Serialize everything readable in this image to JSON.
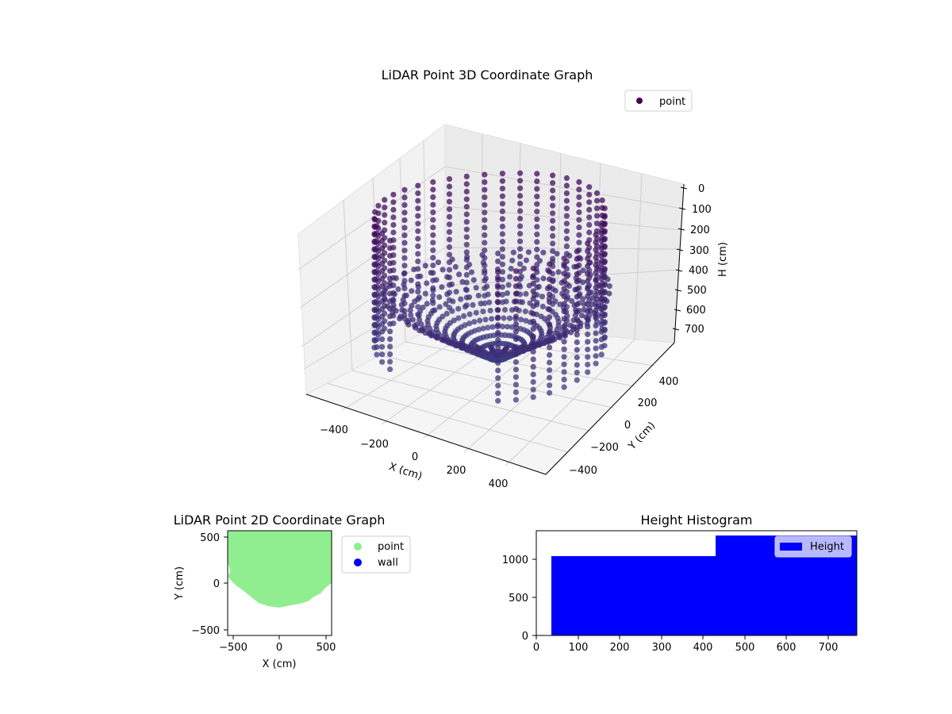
{
  "chart_data": [
    {
      "type": "scatter3d",
      "title": "LiDAR Point 3D Coordinate Graph",
      "xlabel": "X (cm)",
      "ylabel": "Y (cm)",
      "zlabel": "H (cm)",
      "x_ticks": [
        "−400",
        "−200",
        "0",
        "200",
        "400"
      ],
      "y_ticks": [
        "−400",
        "−200",
        "0",
        "200",
        "400"
      ],
      "z_ticks": [
        "0",
        "100",
        "200",
        "300",
        "400",
        "500",
        "600",
        "700"
      ],
      "xlim": [
        -550,
        550
      ],
      "ylim": [
        -550,
        550
      ],
      "zlim": [
        0,
        770
      ],
      "z_inverted": true,
      "legend": [
        {
          "label": "point",
          "color": "#440154"
        }
      ],
      "colormap": "viridis",
      "description": "Bowl-shaped point cloud of a room scan: ring of vertical wall columns around a dense floor cluster near H~700"
    },
    {
      "type": "scatter",
      "title": "LiDAR Point 2D Coordinate Graph",
      "xlabel": "X (cm)",
      "ylabel": "Y (cm)",
      "x_ticks": [
        "−500",
        "0",
        "500"
      ],
      "y_ticks": [
        "−500",
        "0",
        "500"
      ],
      "xlim": [
        -560,
        560
      ],
      "ylim": [
        -560,
        560
      ],
      "legend": [
        {
          "label": "point",
          "color": "#90ee90"
        },
        {
          "label": "wall",
          "color": "#0000ff"
        }
      ],
      "description": "Filled green region spanning x -500..560, y -270..560 with rounded lower boundary"
    },
    {
      "type": "bar",
      "title": "Height Histogram",
      "xlabel": "",
      "ylabel": "",
      "x_ticks": [
        "0",
        "100",
        "200",
        "300",
        "400",
        "500",
        "600",
        "700"
      ],
      "y_ticks": [
        "0",
        "500",
        "1000"
      ],
      "xlim": [
        0,
        770
      ],
      "ylim": [
        0,
        1380
      ],
      "bins": [
        [
          35,
          432
        ],
        [
          432,
          770
        ]
      ],
      "values": [
        1045,
        1310
      ],
      "color": "#0000ff",
      "legend": [
        {
          "label": "Height",
          "color": "#0000ff"
        }
      ]
    }
  ]
}
